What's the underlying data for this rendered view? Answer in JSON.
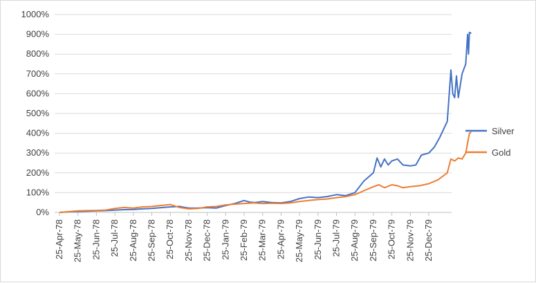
{
  "chart_data": {
    "type": "line",
    "title": "",
    "xlabel": "",
    "ylabel": "",
    "ylim": [
      0,
      1000
    ],
    "y_ticks": [
      "0%",
      "100%",
      "200%",
      "300%",
      "400%",
      "500%",
      "600%",
      "700%",
      "800%",
      "900%",
      "1000%"
    ],
    "x_ticks": [
      "25-Apr-78",
      "25-May-78",
      "25-Jun-78",
      "25-Jul-78",
      "25-Aug-78",
      "25-Sep-78",
      "25-Oct-78",
      "25-Nov-78",
      "25-Dec-78",
      "25-Jan-79",
      "25-Feb-79",
      "25-Mar-79",
      "25-Apr-79",
      "25-May-79",
      "25-Jun-79",
      "25-Jul-79",
      "25-Aug-79",
      "25-Sep-79",
      "25-Oct-79",
      "25-Nov-79",
      "25-Dec-79"
    ],
    "grid": true,
    "legend_position": "right",
    "x_unit": "month index from 25-Apr-78",
    "series": [
      {
        "name": "Silver",
        "color": "#4472c4",
        "points": [
          [
            0,
            0
          ],
          [
            0.5,
            3
          ],
          [
            1,
            5
          ],
          [
            1.5,
            6
          ],
          [
            2,
            8
          ],
          [
            2.5,
            9
          ],
          [
            3,
            12
          ],
          [
            3.5,
            14
          ],
          [
            4,
            15
          ],
          [
            4.5,
            18
          ],
          [
            5,
            20
          ],
          [
            5.5,
            24
          ],
          [
            6,
            28
          ],
          [
            6.5,
            30
          ],
          [
            7,
            22
          ],
          [
            7.5,
            22
          ],
          [
            8,
            24
          ],
          [
            8.5,
            22
          ],
          [
            9,
            35
          ],
          [
            9.5,
            45
          ],
          [
            10,
            60
          ],
          [
            10.3,
            52
          ],
          [
            10.6,
            50
          ],
          [
            11,
            55
          ],
          [
            11.5,
            50
          ],
          [
            12,
            48
          ],
          [
            12.5,
            55
          ],
          [
            13,
            70
          ],
          [
            13.5,
            78
          ],
          [
            14,
            75
          ],
          [
            14.5,
            80
          ],
          [
            15,
            90
          ],
          [
            15.5,
            85
          ],
          [
            16,
            100
          ],
          [
            16.5,
            160
          ],
          [
            17,
            200
          ],
          [
            17.2,
            275
          ],
          [
            17.4,
            230
          ],
          [
            17.6,
            270
          ],
          [
            17.8,
            240
          ],
          [
            18,
            260
          ],
          [
            18.3,
            270
          ],
          [
            18.6,
            240
          ],
          [
            19,
            235
          ],
          [
            19.3,
            240
          ],
          [
            19.6,
            290
          ],
          [
            20,
            300
          ],
          [
            20.3,
            330
          ],
          [
            20.6,
            380
          ],
          [
            21,
            460
          ],
          [
            21.2,
            720
          ],
          [
            21.3,
            600
          ],
          [
            21.4,
            580
          ],
          [
            21.5,
            690
          ],
          [
            21.6,
            580
          ],
          [
            21.8,
            700
          ],
          [
            22,
            750
          ],
          [
            22.1,
            900
          ],
          [
            22.15,
            800
          ],
          [
            22.2,
            910
          ],
          [
            22.3,
            905
          ]
        ]
      },
      {
        "name": "Gold",
        "color": "#ed7d31",
        "points": [
          [
            0,
            0
          ],
          [
            0.5,
            4
          ],
          [
            1,
            8
          ],
          [
            1.5,
            9
          ],
          [
            2,
            10
          ],
          [
            2.5,
            12
          ],
          [
            3,
            20
          ],
          [
            3.5,
            25
          ],
          [
            4,
            22
          ],
          [
            4.5,
            28
          ],
          [
            5,
            30
          ],
          [
            5.5,
            35
          ],
          [
            6,
            40
          ],
          [
            6.5,
            25
          ],
          [
            7,
            18
          ],
          [
            7.5,
            20
          ],
          [
            8,
            28
          ],
          [
            8.5,
            30
          ],
          [
            9,
            38
          ],
          [
            9.5,
            42
          ],
          [
            10,
            45
          ],
          [
            10.5,
            48
          ],
          [
            11,
            45
          ],
          [
            11.5,
            46
          ],
          [
            12,
            45
          ],
          [
            12.5,
            48
          ],
          [
            13,
            55
          ],
          [
            13.5,
            60
          ],
          [
            14,
            65
          ],
          [
            14.5,
            68
          ],
          [
            15,
            75
          ],
          [
            15.5,
            80
          ],
          [
            16,
            90
          ],
          [
            16.5,
            110
          ],
          [
            17,
            130
          ],
          [
            17.3,
            140
          ],
          [
            17.6,
            125
          ],
          [
            18,
            140
          ],
          [
            18.3,
            135
          ],
          [
            18.6,
            125
          ],
          [
            19,
            130
          ],
          [
            19.5,
            135
          ],
          [
            20,
            145
          ],
          [
            20.5,
            165
          ],
          [
            21,
            200
          ],
          [
            21.2,
            270
          ],
          [
            21.4,
            260
          ],
          [
            21.6,
            275
          ],
          [
            21.8,
            270
          ],
          [
            22,
            300
          ],
          [
            22.1,
            350
          ],
          [
            22.2,
            400
          ],
          [
            22.3,
            405
          ]
        ]
      }
    ]
  }
}
